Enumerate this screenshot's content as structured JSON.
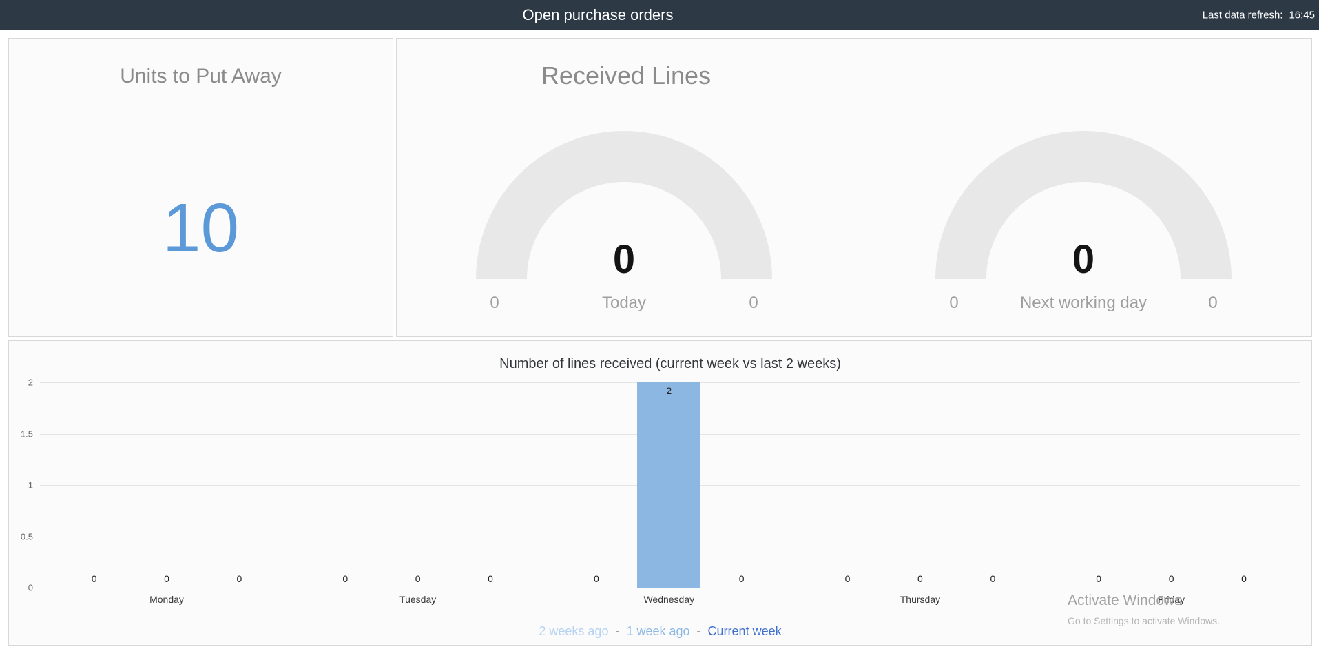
{
  "header": {
    "title": "Open purchase orders",
    "refresh_label": "Last data refresh:",
    "refresh_time": "16:45"
  },
  "kpi_card": {
    "title": "Units to Put Away",
    "value": "10",
    "value_color": "#5b99d8"
  },
  "received_card": {
    "title": "Received Lines",
    "gauges": [
      {
        "value": "0",
        "min_label": "0",
        "axis_label": "Today",
        "max_label": "0"
      },
      {
        "value": "0",
        "min_label": "0",
        "axis_label": "Next working day",
        "max_label": "0"
      }
    ]
  },
  "chart_data": {
    "type": "bar",
    "title": "Number of lines received (current week vs last 2 weeks)",
    "categories": [
      "Monday",
      "Tuesday",
      "Wednesday",
      "Thursday",
      "Friday"
    ],
    "series": [
      {
        "name": "2 weeks ago",
        "color": "#b5d2f1",
        "values": [
          0,
          0,
          0,
          0,
          0
        ]
      },
      {
        "name": "1 week ago",
        "color": "#8db7e3",
        "values": [
          0,
          0,
          2,
          0,
          0
        ]
      },
      {
        "name": "Current week",
        "color": "#3e6fd0",
        "values": [
          0,
          0,
          0,
          0,
          0
        ]
      }
    ],
    "y_ticks": [
      "0",
      "0.5",
      "1",
      "1.5",
      "2"
    ],
    "ylim": [
      0,
      2
    ],
    "grid": true,
    "legend_position": "bottom",
    "legend_separator": "-"
  },
  "watermark": {
    "line1": "Activate Windows",
    "line2": "Go to Settings to activate Windows."
  }
}
